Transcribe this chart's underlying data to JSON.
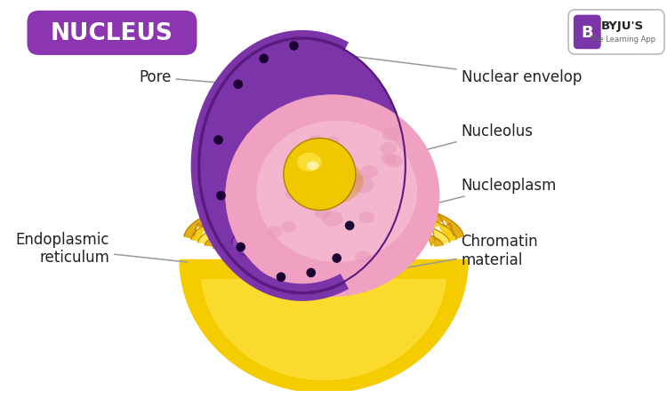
{
  "title": "NUCLEUS",
  "title_bg": "#8B35B0",
  "title_color": "#FFFFFF",
  "bg_color": "#FFFFFF",
  "labels": {
    "pore": "Pore",
    "nuclear_envelop": "Nuclear envelop",
    "nucleolus": "Nucleolus",
    "nucleoplasm": "Nucleoplasm",
    "chromatin": "Chromatin\nmaterial",
    "endoplasmic": "Endoplasmic\nreticulum"
  },
  "label_fontsize": 12,
  "label_color": "#222222",
  "line_color": "#999999",
  "purple_outer": "#7B35A8",
  "purple_dark": "#5A1A80",
  "purple_mid": "#8B45B8",
  "purple_light": "#9B55C8",
  "pink_outer": "#F0A0C0",
  "pink_inner": "#F5C0D5",
  "pink_light": "#FFD8E8",
  "nucleolus_yellow": "#F0C800",
  "nucleolus_light": "#FFE84A",
  "nucleolus_bright": "#FFFFF0",
  "er_yellow": "#F5CC00",
  "er_gold": "#E0A800",
  "er_dark": "#C08000",
  "er_light": "#FFE44A"
}
